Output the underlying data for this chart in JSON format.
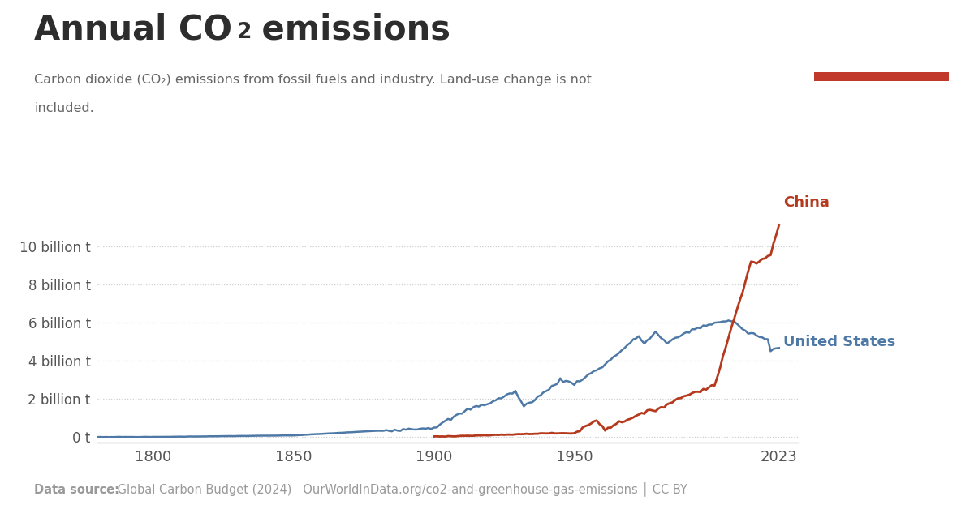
{
  "title_part1": "Annual CO",
  "title_sub": "2",
  "title_part2": " emissions",
  "subtitle_line1": "Carbon dioxide (CO₂) emissions from fossil fuels and industry. Land-use change is not",
  "subtitle_line2": "included.",
  "datasource_bold": "Data source:",
  "datasource_rest": " Global Carbon Budget (2024)   OurWorldInData.org/co2-and-greenhouse-gas-emissions │ CC BY",
  "xlabel_years": [
    1800,
    1850,
    1900,
    1950,
    2023
  ],
  "ylabel_ticks": [
    0,
    2,
    4,
    6,
    8,
    10
  ],
  "ylabel_labels": [
    "0 t",
    "2 billion t",
    "4 billion t",
    "6 billion t",
    "8 billion t",
    "10 billion t"
  ],
  "ylim": [
    -0.3,
    12.5
  ],
  "xlim": [
    1780,
    2030
  ],
  "us_color": "#4e79a7",
  "china_color": "#b5391c",
  "bg_color": "#ffffff",
  "grid_color": "#cccccc",
  "title_color": "#2d2d2d",
  "tick_color": "#555555",
  "subtitle_color": "#666666",
  "footer_color": "#999999",
  "owid_bg": "#1b3a6b",
  "owid_stripe": "#c0392b",
  "us_label": "United States",
  "china_label": "China",
  "us_label_year": 2025,
  "us_label_val": 5.0,
  "china_label_year": 2025,
  "china_label_val": 12.3
}
